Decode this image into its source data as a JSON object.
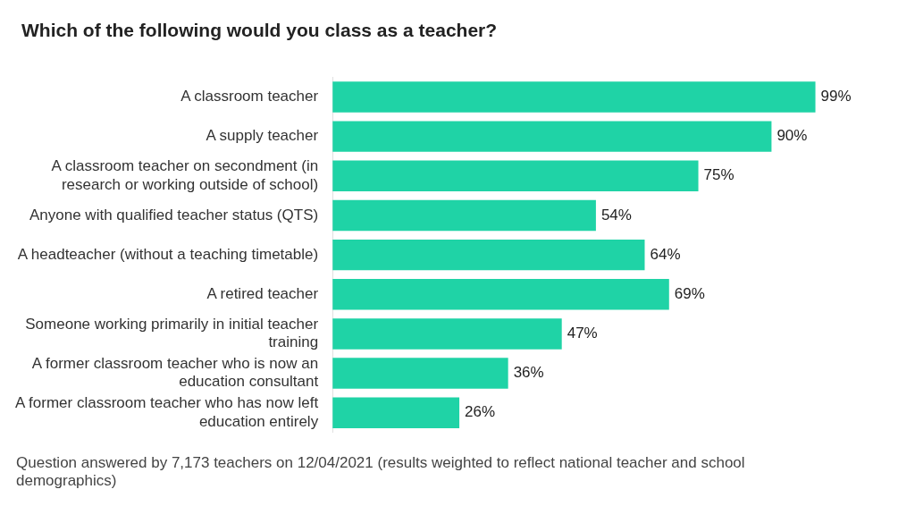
{
  "chart_data": {
    "type": "bar",
    "orientation": "horizontal",
    "title": "Which of the following would you class as a teacher?",
    "categories": [
      "A classroom teacher",
      "A supply teacher",
      "A classroom teacher on secondment (in research or working outside of school)",
      "Anyone with qualified teacher status (QTS)",
      "A headteacher (without a teaching timetable)",
      "A retired teacher",
      "Someone working primarily in initial teacher training",
      "A former classroom teacher who is now an education consultant",
      "A former classroom teacher who has now left education entirely"
    ],
    "values": [
      99,
      90,
      75,
      54,
      64,
      69,
      47,
      36,
      26
    ],
    "value_labels": [
      "99%",
      "90%",
      "75%",
      "54%",
      "64%",
      "69%",
      "47%",
      "36%",
      "26%"
    ],
    "color": "#1fd3a6",
    "legend": false,
    "annotations": [
      "Question answered by 7,173 teachers on 12/04/2021 (results weighted to reflect national teacher and school demographics)"
    ]
  }
}
